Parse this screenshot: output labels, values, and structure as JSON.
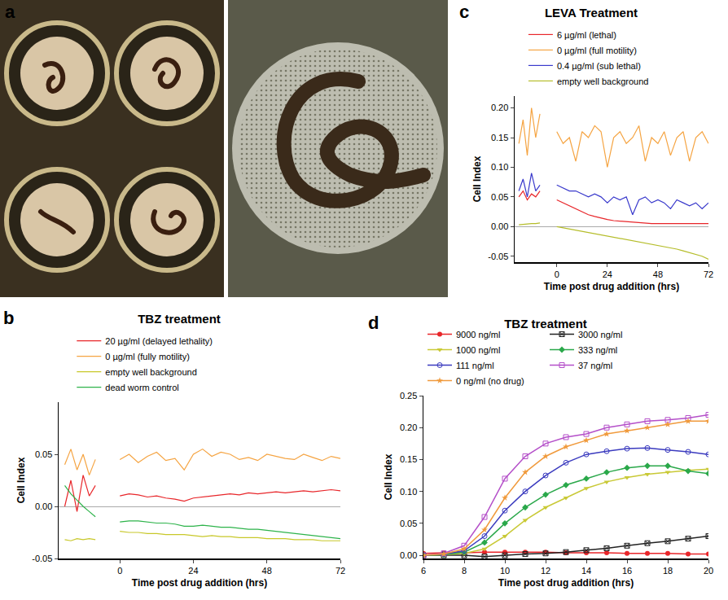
{
  "image_panel": {
    "panel": "a"
  },
  "chart_data": [
    {
      "panel": "b",
      "type": "line",
      "title": "TBZ treatment",
      "x_label": "Time post drug addition (hrs)",
      "y_label": "Cell Index",
      "x": [
        -18,
        -16,
        -14,
        -12,
        -10,
        -8,
        -4,
        0,
        3,
        6,
        9,
        12,
        15,
        18,
        21,
        24,
        27,
        30,
        33,
        36,
        39,
        42,
        45,
        48,
        51,
        54,
        57,
        60,
        63,
        66,
        69,
        72
      ],
      "xlim": [
        -20,
        72
      ],
      "xticks": [
        0,
        24,
        48,
        72
      ],
      "ylim": [
        -0.05,
        0.1
      ],
      "yticks": [
        -0.05,
        {
          "value": 0,
          "label": "0.00"
        },
        0.05
      ],
      "grid": false,
      "legend": "top",
      "series": [
        {
          "name": "20 µg/ml (delayed lethality)",
          "color": "#e8262a",
          "values": [
            0.0,
            0.025,
            -0.005,
            0.03,
            0.01,
            0.02,
            null,
            0.01,
            0.012,
            0.011,
            0.009,
            0.01,
            0.008,
            0.007,
            0.005,
            0.008,
            0.009,
            0.01,
            0.011,
            0.012,
            0.011,
            0.013,
            0.012,
            0.013,
            0.014,
            0.013,
            0.014,
            0.015,
            0.014,
            0.015,
            0.016,
            0.015
          ]
        },
        {
          "name": "0 µg/ml (fully motility)",
          "color": "#f5a442",
          "values": [
            0.04,
            0.055,
            0.035,
            0.05,
            0.03,
            0.045,
            null,
            0.045,
            0.05,
            0.042,
            0.048,
            0.052,
            0.044,
            0.046,
            0.035,
            0.05,
            0.055,
            0.048,
            0.052,
            0.05,
            0.045,
            0.047,
            0.044,
            0.05,
            0.048,
            0.046,
            0.045,
            0.05,
            0.047,
            0.044,
            0.048,
            0.046
          ]
        },
        {
          "name": "empty well background",
          "color": "#c8c82a",
          "values": [
            -0.032,
            -0.033,
            -0.031,
            -0.032,
            -0.031,
            -0.032,
            null,
            -0.024,
            -0.025,
            -0.025,
            -0.026,
            -0.026,
            -0.027,
            -0.027,
            -0.027,
            -0.028,
            -0.029,
            -0.028,
            -0.029,
            -0.029,
            -0.03,
            -0.03,
            -0.03,
            -0.031,
            -0.031,
            -0.031,
            -0.032,
            -0.032,
            -0.032,
            -0.033,
            -0.033,
            -0.033
          ]
        },
        {
          "name": "dead worm control",
          "color": "#2db34a",
          "values": [
            0.02,
            0.012,
            0.006,
            0.0,
            -0.005,
            -0.01,
            null,
            -0.015,
            -0.014,
            -0.014,
            -0.015,
            -0.016,
            -0.016,
            -0.017,
            -0.019,
            -0.019,
            -0.018,
            -0.019,
            -0.02,
            -0.02,
            -0.021,
            -0.022,
            -0.022,
            -0.023,
            -0.024,
            -0.025,
            -0.026,
            -0.027,
            -0.028,
            -0.029,
            -0.03,
            -0.031
          ]
        }
      ]
    },
    {
      "panel": "c",
      "type": "line",
      "title": "LEVA Treatment",
      "x_label": "Time post drug addition (hrs)",
      "y_label": "Cell Index",
      "x": [
        -18,
        -16,
        -14,
        -12,
        -10,
        -8,
        -4,
        0,
        3,
        6,
        9,
        12,
        15,
        18,
        21,
        24,
        27,
        30,
        33,
        36,
        39,
        42,
        45,
        48,
        51,
        54,
        57,
        60,
        63,
        66,
        69,
        72
      ],
      "xlim": [
        -20,
        72
      ],
      "xticks": [
        0,
        24,
        48,
        72
      ],
      "ylim": [
        -0.06,
        0.22
      ],
      "yticks": [
        -0.05,
        {
          "value": 0,
          "label": "0.00"
        },
        0.05,
        {
          "value": 0.1,
          "label": "0.10"
        },
        0.15,
        {
          "value": 0.2,
          "label": "0.20"
        }
      ],
      "grid": false,
      "legend": "top",
      "series": [
        {
          "name": "6 µg/ml (lethal)",
          "color": "#e8262a",
          "values": [
            0.05,
            0.06,
            0.045,
            0.055,
            0.05,
            0.06,
            null,
            0.045,
            0.04,
            0.035,
            0.03,
            0.025,
            0.02,
            0.017,
            0.014,
            0.012,
            0.01,
            0.009,
            0.008,
            0.007,
            0.006,
            0.006,
            0.005,
            0.005,
            0.005,
            0.005,
            0.005,
            0.005,
            0.005,
            0.005,
            0.005,
            0.005
          ]
        },
        {
          "name": "0 µg/ml (full motility)",
          "color": "#f5a442",
          "values": [
            0.14,
            0.18,
            0.12,
            0.2,
            0.15,
            0.19,
            null,
            0.16,
            0.14,
            0.15,
            0.11,
            0.16,
            0.15,
            0.17,
            0.16,
            0.1,
            0.15,
            0.16,
            0.14,
            0.15,
            0.17,
            0.11,
            0.15,
            0.14,
            0.16,
            0.12,
            0.15,
            0.16,
            0.11,
            0.15,
            0.16,
            0.14
          ]
        },
        {
          "name": "0.4 µg/ml (sub lethal)",
          "color": "#3a3acc",
          "values": [
            0.06,
            0.08,
            0.05,
            0.09,
            0.06,
            0.07,
            null,
            0.07,
            0.065,
            0.06,
            0.06,
            0.055,
            0.05,
            0.055,
            0.05,
            0.04,
            0.05,
            0.045,
            0.05,
            0.02,
            0.045,
            0.05,
            0.04,
            0.045,
            0.04,
            0.03,
            0.045,
            0.04,
            0.035,
            0.04,
            0.03,
            0.04
          ]
        },
        {
          "name": "empty well background",
          "color": "#b5bd2a",
          "values": [
            0.003,
            0.004,
            0.004,
            0.005,
            0.005,
            0.006,
            null,
            0.0,
            -0.002,
            -0.004,
            -0.006,
            -0.008,
            -0.01,
            -0.012,
            -0.014,
            -0.016,
            -0.018,
            -0.02,
            -0.022,
            -0.024,
            -0.026,
            -0.028,
            -0.03,
            -0.032,
            -0.034,
            -0.036,
            -0.038,
            -0.041,
            -0.044,
            -0.047,
            -0.05,
            -0.055
          ]
        }
      ]
    },
    {
      "panel": "d",
      "type": "line",
      "title": "TBZ treatment",
      "x_label": "Time post drug addition (hrs)",
      "y_label": "Cell Index",
      "x": [
        6,
        7,
        8,
        9,
        10,
        11,
        12,
        13,
        14,
        15,
        16,
        17,
        18,
        19,
        20
      ],
      "xlim": [
        6,
        20
      ],
      "xticks": [
        6,
        8,
        10,
        12,
        14,
        16,
        18,
        20
      ],
      "ylim": [
        -0.005,
        0.25
      ],
      "yticks": [
        {
          "value": 0,
          "label": "0.00"
        },
        0.05,
        {
          "value": 0.1,
          "label": "0.10"
        },
        0.15,
        {
          "value": 0.2,
          "label": "0.20"
        },
        0.25
      ],
      "grid": false,
      "legend": "top",
      "series": [
        {
          "name": "9000 ng/ml",
          "color": "#e8262a",
          "marker": "circle",
          "values": [
            0.003,
            0.004,
            0.004,
            0.005,
            0.005,
            0.005,
            0.005,
            0.004,
            0.004,
            0.004,
            0.003,
            0.003,
            0.003,
            0.002,
            0.002
          ]
        },
        {
          "name": "3000 ng/ml",
          "color": "#222222",
          "marker": "square-x-open",
          "values": [
            0.0,
            0.0,
            0.0,
            -0.002,
            0.0,
            0.002,
            0.003,
            0.005,
            0.008,
            0.011,
            0.015,
            0.019,
            0.022,
            0.026,
            0.03
          ]
        },
        {
          "name": "1000 ng/ml",
          "color": "#c9c936",
          "marker": "triangle-down",
          "values": [
            0.0,
            0.001,
            0.003,
            0.01,
            0.03,
            0.055,
            0.075,
            0.09,
            0.105,
            0.115,
            0.122,
            0.127,
            0.13,
            0.133,
            0.135
          ]
        },
        {
          "name": "333 ng/ml",
          "color": "#2aa84a",
          "marker": "diamond",
          "values": [
            0.0,
            0.001,
            0.005,
            0.02,
            0.05,
            0.075,
            0.095,
            0.11,
            0.12,
            0.13,
            0.137,
            0.14,
            0.14,
            0.132,
            0.128
          ]
        },
        {
          "name": "111 ng/ml",
          "color": "#3b3bbf",
          "marker": "circle-open",
          "values": [
            0.0,
            0.002,
            0.007,
            0.03,
            0.07,
            0.1,
            0.125,
            0.145,
            0.158,
            0.163,
            0.167,
            0.168,
            0.165,
            0.162,
            0.158
          ]
        },
        {
          "name": "37 ng/ml",
          "color": "#b44fc9",
          "marker": "square-open",
          "values": [
            0.0,
            0.003,
            0.015,
            0.06,
            0.12,
            0.155,
            0.175,
            0.185,
            0.19,
            0.2,
            0.205,
            0.21,
            0.212,
            0.215,
            0.22
          ]
        },
        {
          "name": "0 ng/ml (no drug)",
          "color": "#f09a3c",
          "marker": "star",
          "values": [
            0.0,
            0.002,
            0.01,
            0.04,
            0.09,
            0.13,
            0.155,
            0.17,
            0.18,
            0.19,
            0.195,
            0.2,
            0.205,
            0.21,
            0.21
          ]
        }
      ]
    }
  ]
}
